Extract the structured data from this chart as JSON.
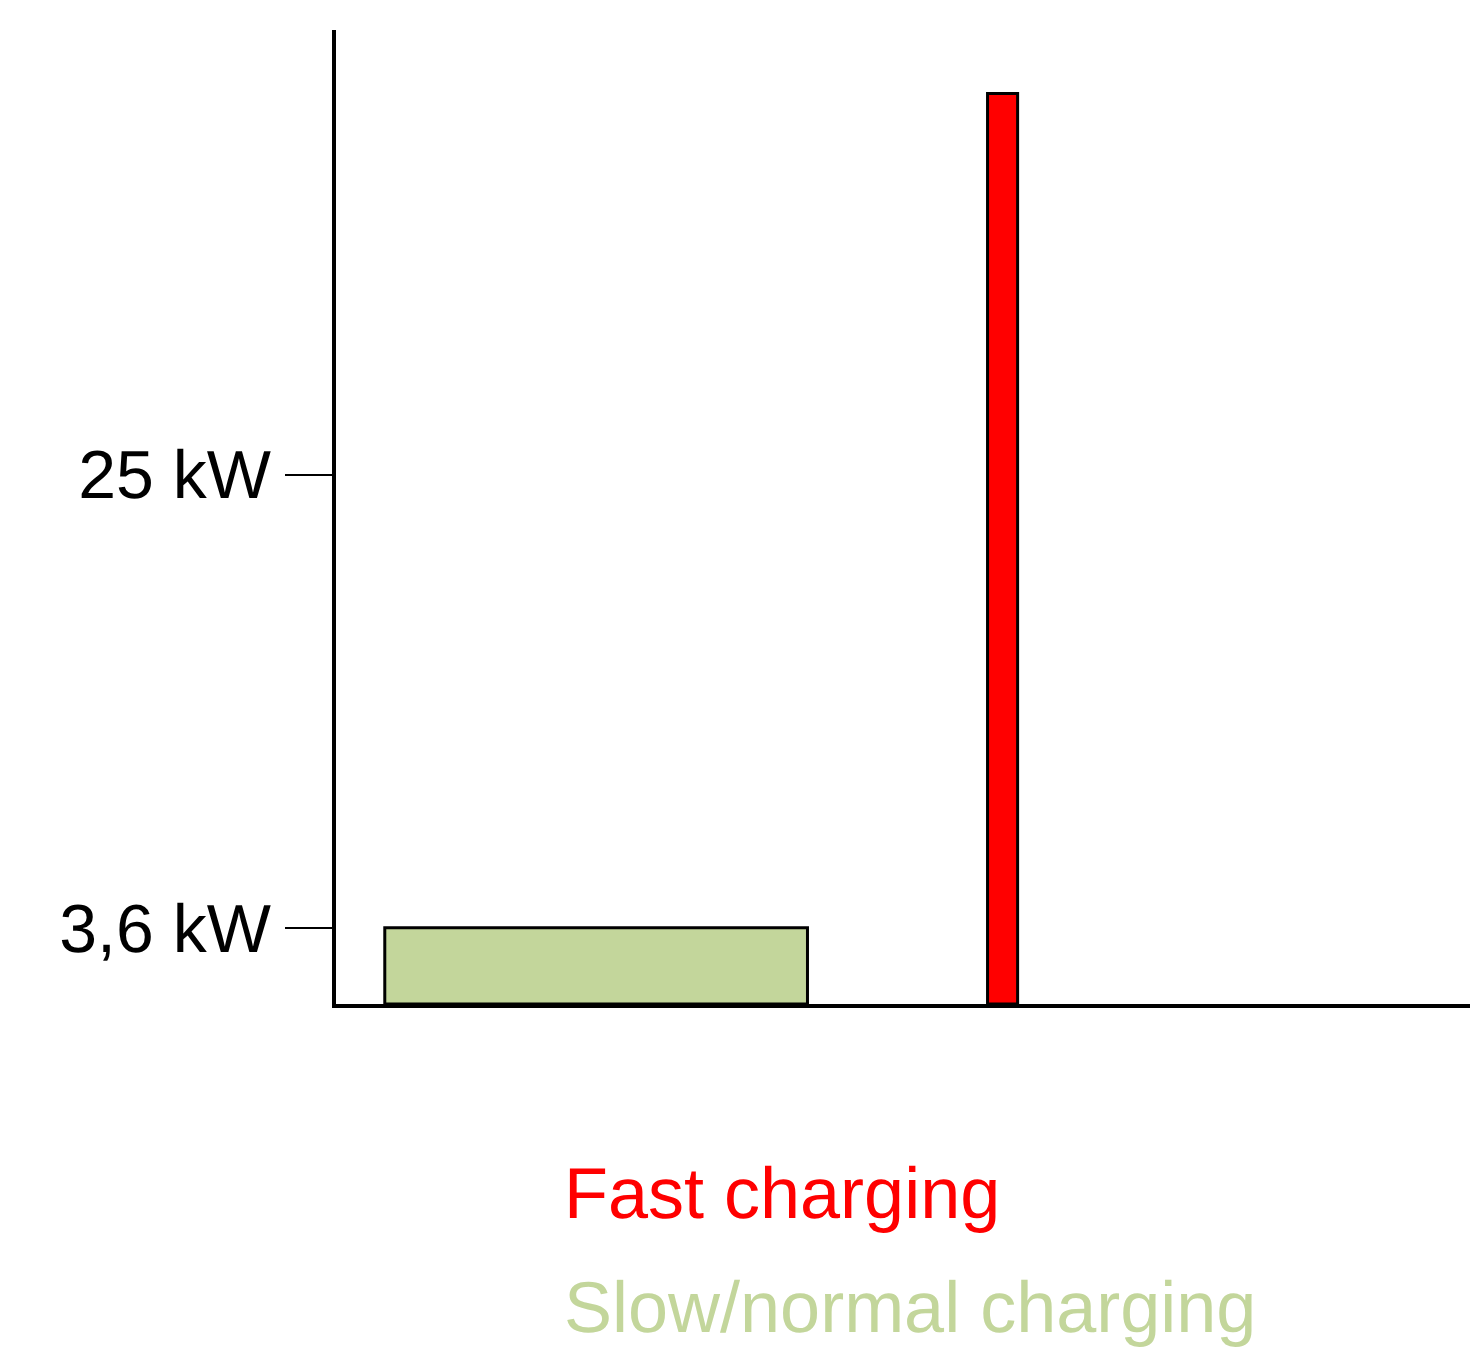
{
  "chart_data": {
    "type": "bar",
    "categories": [
      null,
      null
    ],
    "series": [
      {
        "name": "Fast charging",
        "color": "#ff0000",
        "values": [
          null,
          43
        ]
      },
      {
        "name": "Slow/normal charging",
        "color": "#c3d69b",
        "values": [
          3.6,
          null
        ]
      }
    ],
    "ylim": [
      0,
      46
    ],
    "yticks": [
      {
        "value": 3.6,
        "label": "3,6 kW"
      },
      {
        "value": 25,
        "label": "25 kW"
      }
    ],
    "legend": "bottom"
  }
}
